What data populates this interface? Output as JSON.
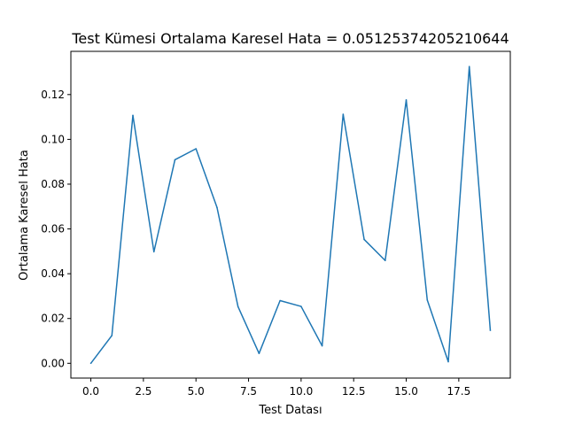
{
  "chart_data": {
    "type": "line",
    "title": "Test Kümesi Ortalama Karesel Hata = 0.05125374205210644",
    "xlabel": "Test Datası",
    "ylabel": "Ortalama Karesel Hata",
    "xlim": [
      -0.95,
      19.95
    ],
    "ylim": [
      -0.0066,
      0.1393
    ],
    "x_ticks": [
      0.0,
      2.5,
      5.0,
      7.5,
      10.0,
      12.5,
      15.0,
      17.5
    ],
    "x_tick_labels": [
      "0.0",
      "2.5",
      "5.0",
      "7.5",
      "10.0",
      "12.5",
      "15.0",
      "17.5"
    ],
    "y_ticks": [
      0.0,
      0.02,
      0.04,
      0.06,
      0.08,
      0.1,
      0.12
    ],
    "y_tick_labels": [
      "0.00",
      "0.02",
      "0.04",
      "0.06",
      "0.08",
      "0.10",
      "0.12"
    ],
    "grid": false,
    "series": [
      {
        "color": "#1f77b4",
        "x": [
          0,
          1,
          2,
          3,
          4,
          5,
          6,
          7,
          8,
          9,
          10,
          11,
          12,
          13,
          14,
          15,
          16,
          17,
          18,
          19
        ],
        "values": [
          0.0,
          0.0124,
          0.1107,
          0.0498,
          0.0909,
          0.0958,
          0.0696,
          0.0253,
          0.0044,
          0.028,
          0.0254,
          0.0078,
          0.1112,
          0.0553,
          0.0459,
          0.1176,
          0.0283,
          0.0007,
          0.1325,
          0.0147
        ]
      }
    ]
  }
}
